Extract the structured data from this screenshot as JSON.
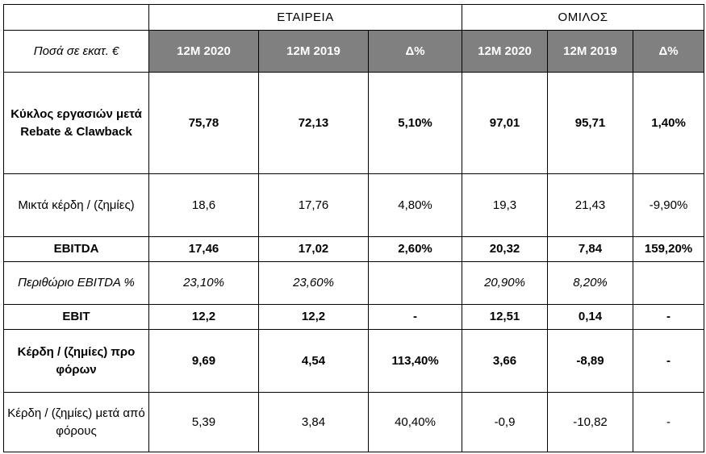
{
  "groups": {
    "company": "ΕΤΑΙΡΕΙΑ",
    "group": "ΟΜΙΛΟΣ"
  },
  "units": "Ποσά σε εκατ. €",
  "columns": [
    "12Μ 2020",
    "12Μ 2019",
    "Δ%",
    "12Μ 2020",
    "12Μ 2019",
    "Δ%"
  ],
  "rows": [
    {
      "label": "Κύκλος εργασιών μετά Rebate & Clawback",
      "values": [
        "75,78",
        "72,13",
        "5,10%",
        "97,01",
        "95,71",
        "1,40%"
      ]
    },
    {
      "label": "Μικτά κέρδη / (ζημίες)",
      "values": [
        "18,6",
        "17,76",
        "4,80%",
        "19,3",
        "21,43",
        "-9,90%"
      ]
    },
    {
      "label": "EBITDA",
      "values": [
        "17,46",
        "17,02",
        "2,60%",
        "20,32",
        "7,84",
        "159,20%"
      ]
    },
    {
      "label": "Περιθώριο EBITDA %",
      "values": [
        "23,10%",
        "23,60%",
        "",
        "20,90%",
        "8,20%",
        ""
      ]
    },
    {
      "label": "EBIT",
      "values": [
        "12,2",
        "12,2",
        "-",
        "12,51",
        "0,14",
        "-"
      ]
    },
    {
      "label": "Κέρδη / (ζημίες) προ φόρων",
      "values": [
        "9,69",
        "4,54",
        "113,40%",
        "3,66",
        "-8,89",
        "-"
      ]
    },
    {
      "label": "Κέρδη / (ζημίες) μετά από φόρους",
      "values": [
        "5,39",
        "3,84",
        "40,40%",
        "-0,9",
        "-10,82",
        "-"
      ]
    }
  ]
}
